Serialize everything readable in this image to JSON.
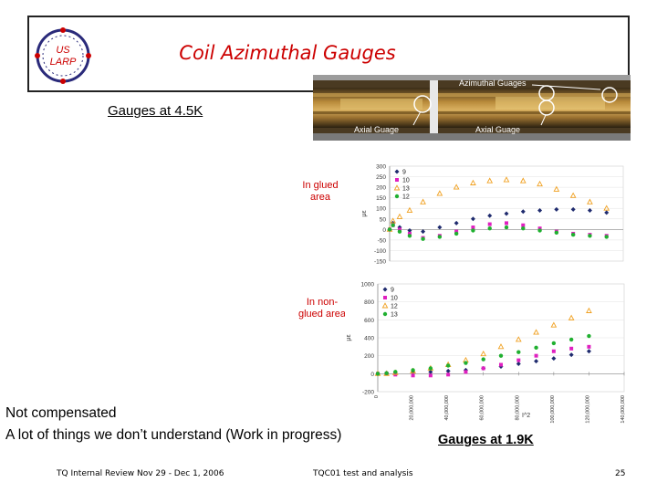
{
  "slide": {
    "title": "Coil Azimuthal Gauges",
    "logo": {
      "line1": "US",
      "line2": "LARP"
    },
    "gauges_45_label": "Gauges at 4.5K",
    "gauges_19_label": "Gauges at 1.9K",
    "glued_label": "In glued\narea",
    "nonglued_label": "In non-\nglued area",
    "note_line1": "Not compensated",
    "note_line2": "A lot of things we don’t understand (Work in progress)"
  },
  "photo": {
    "azimuthal_label": "Azimuthal Guages",
    "axial_label_1": "Axial Guage",
    "axial_label_2": "Axial Guage"
  },
  "footer": {
    "left": "TQ Internal Review Nov 29 - Dec 1, 2006",
    "center": "TQC01 test and analysis",
    "page": "25"
  },
  "colors": {
    "title": "#cc0000",
    "annotation": "#cc0000",
    "series": [
      "#1f2b6e",
      "#e020c0",
      "#f0a020",
      "#20b030"
    ]
  },
  "x_unit": "I^2",
  "chart_data": [
    {
      "type": "scatter",
      "title": "",
      "ylabel": "με",
      "xlabel": "",
      "ylim": [
        -150,
        300
      ],
      "yticks": [
        -150,
        -100,
        -50,
        0,
        50,
        100,
        150,
        200,
        250,
        300
      ],
      "xlim": [
        0,
        140000000
      ],
      "legend_position": "top-left",
      "series": [
        {
          "name": "9",
          "x": [
            0,
            2000000,
            6000000,
            12000000,
            20000000,
            30000000,
            40000000,
            50000000,
            60000000,
            70000000,
            80000000,
            90000000,
            100000000,
            110000000,
            120000000,
            130000000
          ],
          "y": [
            0,
            30,
            10,
            -5,
            -10,
            10,
            30,
            50,
            65,
            75,
            85,
            90,
            95,
            95,
            90,
            80
          ]
        },
        {
          "name": "10",
          "x": [
            0,
            2000000,
            6000000,
            12000000,
            20000000,
            30000000,
            40000000,
            50000000,
            60000000,
            70000000,
            80000000,
            90000000,
            100000000,
            110000000,
            120000000,
            130000000
          ],
          "y": [
            0,
            20,
            0,
            -20,
            -40,
            -30,
            -10,
            10,
            25,
            30,
            20,
            5,
            -10,
            -20,
            -25,
            -30
          ]
        },
        {
          "name": "13",
          "x": [
            0,
            2000000,
            6000000,
            12000000,
            20000000,
            30000000,
            40000000,
            50000000,
            60000000,
            70000000,
            80000000,
            90000000,
            100000000,
            110000000,
            120000000,
            130000000
          ],
          "y": [
            0,
            40,
            60,
            90,
            130,
            170,
            200,
            220,
            230,
            235,
            230,
            215,
            190,
            160,
            130,
            100
          ]
        },
        {
          "name": "12",
          "x": [
            0,
            2000000,
            6000000,
            12000000,
            20000000,
            30000000,
            40000000,
            50000000,
            60000000,
            70000000,
            80000000,
            90000000,
            100000000,
            110000000,
            120000000,
            130000000
          ],
          "y": [
            0,
            20,
            -10,
            -30,
            -45,
            -35,
            -20,
            -5,
            5,
            10,
            5,
            -5,
            -15,
            -25,
            -30,
            -35
          ]
        }
      ]
    },
    {
      "type": "scatter",
      "title": "",
      "ylabel": "με",
      "xlabel": "I^2",
      "ylim": [
        -200,
        1000
      ],
      "yticks": [
        -200,
        0,
        200,
        400,
        600,
        800,
        1000
      ],
      "xlim": [
        0,
        140000000
      ],
      "xticks": [
        0,
        20000000,
        40000000,
        60000000,
        80000000,
        100000000,
        120000000,
        140000000
      ],
      "xtick_labels": [
        "0",
        "20,000,000",
        "40,000,000",
        "60,000,000",
        "80,000,000",
        "100,000,000",
        "120,000,000",
        "140,000,000"
      ],
      "legend_position": "top-left",
      "series": [
        {
          "name": "9",
          "x": [
            0,
            5000000,
            10000000,
            20000000,
            30000000,
            40000000,
            50000000,
            60000000,
            70000000,
            80000000,
            90000000,
            100000000,
            110000000,
            120000000
          ],
          "y": [
            0,
            10,
            15,
            20,
            20,
            30,
            40,
            60,
            80,
            110,
            140,
            170,
            210,
            250
          ]
        },
        {
          "name": "10",
          "x": [
            0,
            5000000,
            10000000,
            20000000,
            30000000,
            40000000,
            50000000,
            60000000,
            70000000,
            80000000,
            90000000,
            100000000,
            110000000,
            120000000
          ],
          "y": [
            0,
            0,
            -10,
            -20,
            -20,
            -10,
            20,
            60,
            100,
            150,
            200,
            250,
            280,
            300
          ]
        },
        {
          "name": "12",
          "x": [
            0,
            5000000,
            10000000,
            20000000,
            30000000,
            40000000,
            50000000,
            60000000,
            70000000,
            80000000,
            90000000,
            100000000,
            110000000,
            120000000
          ],
          "y": [
            0,
            0,
            10,
            30,
            60,
            100,
            150,
            220,
            300,
            380,
            460,
            540,
            620,
            700
          ]
        },
        {
          "name": "13",
          "x": [
            0,
            5000000,
            10000000,
            20000000,
            30000000,
            40000000,
            50000000,
            60000000,
            70000000,
            80000000,
            90000000,
            100000000,
            110000000,
            120000000
          ],
          "y": [
            0,
            5,
            20,
            40,
            60,
            90,
            120,
            160,
            200,
            240,
            290,
            340,
            380,
            420
          ]
        }
      ]
    }
  ]
}
